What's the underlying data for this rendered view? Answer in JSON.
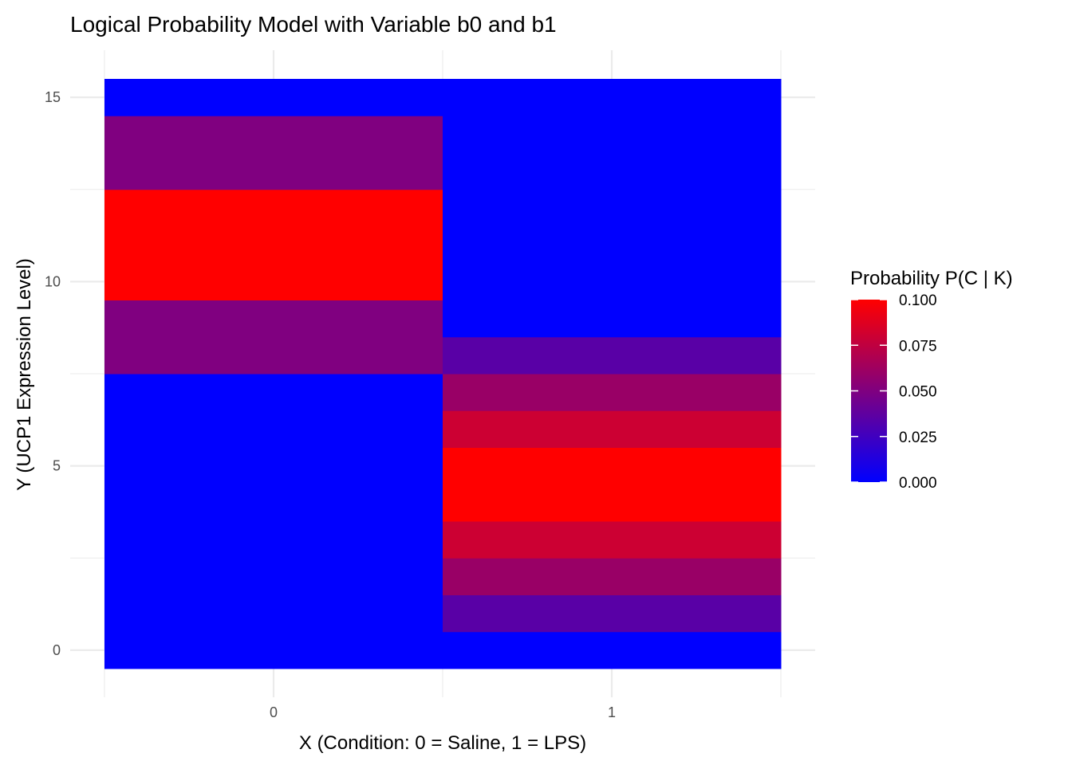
{
  "chart_data": {
    "type": "heatmap",
    "title": "Logical Probability Model with Variable b0 and b1",
    "xlabel": "X (Condition: 0 = Saline, 1 = LPS)",
    "ylabel": "Y (UCP1 Expression Level)",
    "x_categories": [
      0,
      1
    ],
    "x_tick_labels": [
      "0",
      "1"
    ],
    "y_values": [
      0,
      1,
      2,
      3,
      4,
      5,
      6,
      7,
      8,
      9,
      10,
      11,
      12,
      13,
      14,
      15
    ],
    "y_ticks": [
      0,
      5,
      10,
      15
    ],
    "y_tick_labels": [
      "0",
      "5",
      "10",
      "15"
    ],
    "xlim": [
      -0.5,
      1.5
    ],
    "ylim": [
      -0.5,
      15.5
    ],
    "grid": true,
    "legend": {
      "title": "Probability P(C | K)",
      "placement": "right",
      "ticks": [
        0.0,
        0.025,
        0.05,
        0.075,
        0.1
      ],
      "tick_labels": [
        "0.000",
        "0.025",
        "0.050",
        "0.075",
        "0.100"
      ],
      "range": [
        0,
        0.1
      ],
      "low_color": "#0000FF",
      "high_color": "#FF0000"
    },
    "series": [
      {
        "x": 0,
        "values": [
          0,
          0,
          0,
          0,
          0,
          0,
          0,
          0,
          0.05,
          0.05,
          0.1,
          0.1,
          0.1,
          0.05,
          0.05,
          0
        ]
      },
      {
        "x": 1,
        "values": [
          0,
          0.035,
          0.06,
          0.08,
          0.1,
          0.1,
          0.08,
          0.06,
          0.035,
          0,
          0,
          0,
          0,
          0,
          0,
          0
        ]
      }
    ]
  }
}
